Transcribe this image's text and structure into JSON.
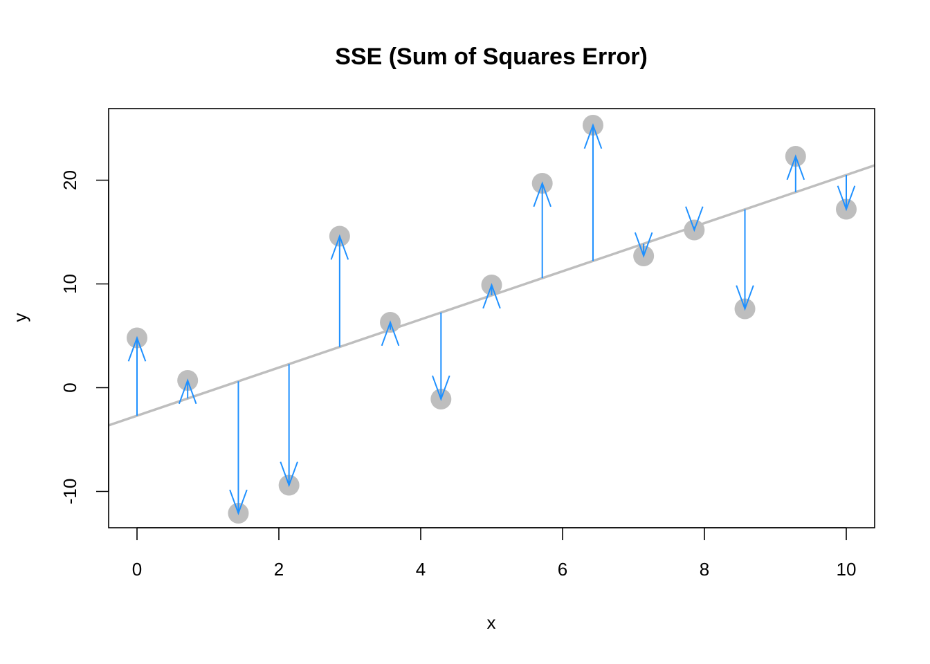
{
  "chart_data": {
    "type": "scatter",
    "title": "SSE (Sum of Squares Error)",
    "xlabel": "x",
    "ylabel": "y",
    "xlim": [
      -0.4,
      10.4
    ],
    "ylim": [
      -13.5,
      26.9
    ],
    "x_ticks": [
      0,
      2,
      4,
      6,
      8,
      10
    ],
    "y_ticks": [
      -10,
      0,
      10,
      20
    ],
    "grid": false,
    "points": [
      {
        "x": 0.0,
        "y": 4.8
      },
      {
        "x": 0.714,
        "y": 0.7
      },
      {
        "x": 1.429,
        "y": -12.1
      },
      {
        "x": 2.143,
        "y": -9.4
      },
      {
        "x": 2.857,
        "y": 14.6
      },
      {
        "x": 3.571,
        "y": 6.3
      },
      {
        "x": 4.286,
        "y": -1.1
      },
      {
        "x": 5.0,
        "y": 9.9
      },
      {
        "x": 5.714,
        "y": 19.7
      },
      {
        "x": 6.429,
        "y": 25.3
      },
      {
        "x": 7.143,
        "y": 12.7
      },
      {
        "x": 7.857,
        "y": 15.2
      },
      {
        "x": 8.571,
        "y": 7.6
      },
      {
        "x": 9.286,
        "y": 22.3
      },
      {
        "x": 10.0,
        "y": 17.2
      }
    ],
    "fit_line": {
      "intercept": -2.7,
      "slope": 2.32
    },
    "colors": {
      "points": "#bebebe",
      "fit_line": "#bebebe",
      "residuals": "#1e90ff"
    }
  }
}
